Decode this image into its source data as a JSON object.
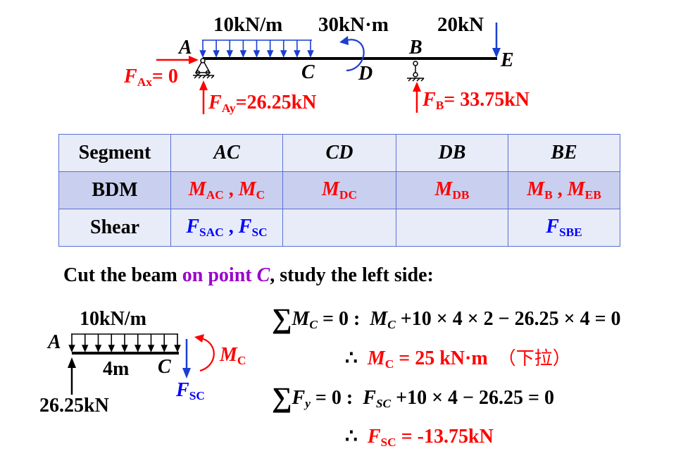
{
  "top_beam": {
    "load_dist": "10kN/m",
    "load_moment": "30kN·m",
    "load_point": "20kN",
    "label_A": "A",
    "label_B": "B",
    "label_C": "C",
    "label_D": "D",
    "label_E": "E",
    "fax": {
      "sym": "F",
      "sub": "Ax",
      "val": "= 0"
    },
    "fay": {
      "sym": "F",
      "sub": "Ay",
      "val": "=26.25kN"
    },
    "fb": {
      "sym": "F",
      "sub": "B",
      "val": "= 33.75kN"
    }
  },
  "table": {
    "headers": [
      "Segment",
      "AC",
      "CD",
      "DB",
      "BE"
    ],
    "bdm_label": "BDM",
    "shear_label": "Shear",
    "bdm": [
      [
        {
          "s": "M",
          "sub": "AC"
        },
        {
          "s": "M",
          "sub": "C"
        }
      ],
      [
        {
          "s": "M",
          "sub": "DC"
        }
      ],
      [
        {
          "s": "M",
          "sub": "DB"
        }
      ],
      [
        {
          "s": "M",
          "sub": "B"
        },
        {
          "s": "M",
          "sub": "EB"
        }
      ]
    ],
    "shear": [
      [
        {
          "s": "F",
          "sub": "SAC"
        },
        {
          "s": "F",
          "sub": "SC"
        }
      ],
      [],
      [],
      [
        {
          "s": "F",
          "sub": "SBE"
        }
      ]
    ],
    "sep": " , "
  },
  "statement": {
    "part1": "Cut the beam ",
    "part2": "on point ",
    "part3": "C",
    "part4": ", study the left side:"
  },
  "free_body": {
    "load": "10kN/m",
    "label_A": "A",
    "length": "4m",
    "label_C": "C",
    "reaction": "26.25kN",
    "mc": {
      "sym": "M",
      "sub": "C"
    },
    "fsc": {
      "sym": "F",
      "sub": "SC"
    }
  },
  "equations": {
    "eq1_sum": "∑",
    "eq1_var": "M",
    "eq1_varsub": "C",
    "eq1_cond": " = 0 :",
    "eq1_body_sym": "M",
    "eq1_body_sub": "C",
    "eq1_body": " +10 × 4 × 2 − 26.25 × 4 = 0",
    "therefore": "∴",
    "res1_sym": "M",
    "res1_sub": "C",
    "res1_val": " = 25 kN·m",
    "res1_note": "（下拉）",
    "eq2_sum": "∑",
    "eq2_var": "F",
    "eq2_varsub": "y",
    "eq2_cond": " = 0 :",
    "eq2_body_sym": "F",
    "eq2_body_sub": "SC",
    "eq2_body": " +10 × 4 − 26.25 = 0",
    "res2_sym": "F",
    "res2_sub": "SC",
    "res2_val": " = -13.75kN"
  },
  "colors": {
    "red": "#ff0000",
    "blue": "#0000ff",
    "purple": "#9900cc",
    "table_border": "#5a6fd6",
    "table_header_bg": "#e8ecf8",
    "table_bdm_bg": "#c9cfee"
  }
}
